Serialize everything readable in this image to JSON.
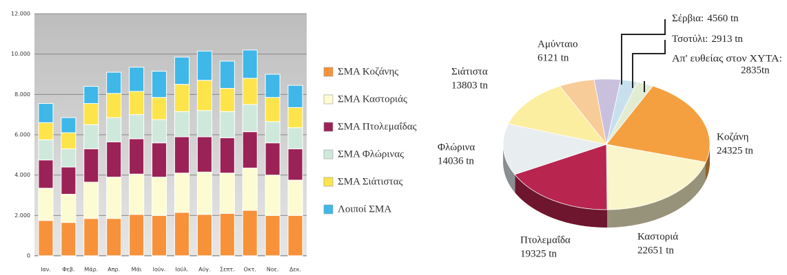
{
  "chart_data": [
    {
      "type": "stacked_bar",
      "categories": [
        "Ιαν.",
        "Φεβ.",
        "Μάρ.",
        "Απρ.",
        "Μάι",
        "Ιούν.",
        "Ιούλ.",
        "Αύγ.",
        "Σεπτ.",
        "Οκτ.",
        "Νοε.",
        "Δεκ."
      ],
      "series": [
        {
          "name": "ΣΜΑ Κοζάνης",
          "color": "#f7923a",
          "values": [
            1750,
            1650,
            1850,
            1850,
            2050,
            2000,
            2150,
            2050,
            2100,
            2250,
            2000,
            2000
          ]
        },
        {
          "name": "ΣΜΑ Καστοριάς",
          "color": "#fdfbd2",
          "values": [
            1600,
            1400,
            1800,
            2050,
            2000,
            1900,
            1950,
            2100,
            2000,
            2100,
            2000,
            1750
          ]
        },
        {
          "name": "ΣΜΑ Πτολεμαΐδας",
          "color": "#9b2257",
          "values": [
            1400,
            1350,
            1650,
            1750,
            1750,
            1700,
            1800,
            1750,
            1750,
            1800,
            1600,
            1550
          ]
        },
        {
          "name": "ΣΜΑ Φλώρινας",
          "color": "#cfe8dc",
          "values": [
            1000,
            900,
            1200,
            1200,
            1200,
            1150,
            1250,
            1300,
            1300,
            1350,
            1050,
            1050
          ]
        },
        {
          "name": "ΣΜΑ Σιάτιστας",
          "color": "#fde44a",
          "values": [
            850,
            800,
            1050,
            1200,
            1150,
            1100,
            1350,
            1500,
            1150,
            1300,
            1200,
            1000
          ]
        },
        {
          "name": "Λοιποί ΣΜΑ",
          "color": "#3fb7e8",
          "values": [
            950,
            750,
            850,
            1050,
            1200,
            1300,
            1350,
            1450,
            1350,
            1400,
            1150,
            1100
          ]
        }
      ],
      "ylim": [
        0,
        12000
      ],
      "yticks": [
        0,
        {
          "value": 2000,
          "label": "2.000"
        },
        {
          "value": 4000,
          "label": "4.000"
        },
        {
          "value": 6000,
          "label": "6.000"
        },
        {
          "value": 8000,
          "label": "8.000"
        },
        {
          "value": 10000,
          "label": "10.000"
        },
        {
          "value": 12000,
          "label": "12.000"
        }
      ],
      "grid": true
    },
    {
      "type": "pie",
      "categories": [
        "Σέρβια:",
        "Τσοτύλι:",
        "Απ' ευθείας στον ΧΥΤΑ:",
        "Κοζάνη",
        "Καστοριά",
        "Πτολεμαΐδα",
        "Φλώρινα",
        "Σιάτιστα",
        "Αμύνταιο"
      ],
      "values": [
        4560,
        2913,
        2835,
        24325,
        22651,
        19325,
        14036,
        13803,
        6121
      ],
      "value_labels": [
        "4560 tn",
        "2913 tn",
        "2835tn",
        "24325 tn",
        "22651 tn",
        "19325 tn",
        "14036 tn",
        "13803 tn",
        "6121 tn"
      ],
      "colors": [
        "#c8c0dc",
        "#c8e0ee",
        "#e2ecd2",
        "#f5a040",
        "#fbf5cc",
        "#b8254e",
        "#e8edf0",
        "#fbeea0",
        "#f8cc98"
      ]
    }
  ]
}
